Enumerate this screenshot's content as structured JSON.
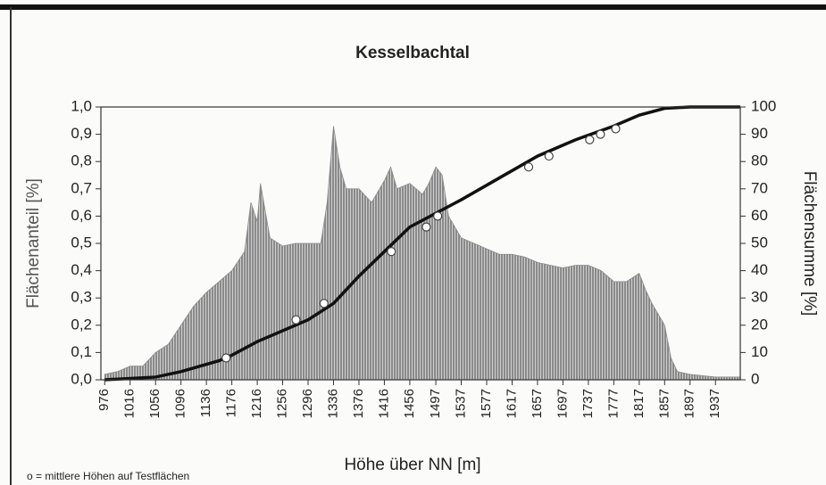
{
  "chart_data": {
    "type": "combo",
    "title": "Kesselbachtal",
    "x_label": "Höhe über NN [m]",
    "y_label": "Flächenanteil [%]",
    "y2_label": "Flächensumme [%]",
    "note": "o = mittlere Höhen auf Testflächen",
    "xlim": [
      970,
      1976
    ],
    "xticks": [
      976,
      1016,
      1056,
      1096,
      1136,
      1176,
      1216,
      1256,
      1296,
      1336,
      1376,
      1416,
      1456,
      1497,
      1537,
      1577,
      1617,
      1657,
      1697,
      1737,
      1777,
      1817,
      1857,
      1897,
      1937
    ],
    "ylim": [
      0,
      1
    ],
    "yticks": [
      {
        "value": 0,
        "label": "0,0"
      },
      {
        "value": 0.1,
        "label": "0,1"
      },
      {
        "value": 0.2,
        "label": "0,2"
      },
      {
        "value": 0.3,
        "label": "0,3"
      },
      {
        "value": 0.4,
        "label": "0,4"
      },
      {
        "value": 0.5,
        "label": "0,5"
      },
      {
        "value": 0.6,
        "label": "0,6"
      },
      {
        "value": 0.7,
        "label": "0,7"
      },
      {
        "value": 0.8,
        "label": "0,8"
      },
      {
        "value": 0.9,
        "label": "0,9"
      },
      {
        "value": 1,
        "label": "1,0"
      }
    ],
    "y2lim": [
      0,
      100
    ],
    "y2ticks": [
      0,
      10,
      20,
      30,
      40,
      50,
      60,
      70,
      80,
      90,
      100
    ],
    "series": [
      {
        "type": "area",
        "color": "#8a8a8a",
        "x": [
          976,
          996,
          1016,
          1036,
          1056,
          1076,
          1096,
          1116,
          1136,
          1156,
          1176,
          1196,
          1206,
          1216,
          1221,
          1236,
          1256,
          1276,
          1296,
          1316,
          1326,
          1336,
          1346,
          1356,
          1376,
          1396,
          1416,
          1426,
          1436,
          1456,
          1476,
          1486,
          1497,
          1507,
          1517,
          1537,
          1557,
          1577,
          1597,
          1617,
          1637,
          1657,
          1677,
          1697,
          1717,
          1737,
          1757,
          1777,
          1797,
          1817,
          1827,
          1837,
          1857,
          1867,
          1877,
          1897,
          1937,
          1976
        ],
        "values": [
          0.02,
          0.03,
          0.05,
          0.05,
          0.1,
          0.13,
          0.2,
          0.27,
          0.32,
          0.36,
          0.4,
          0.47,
          0.65,
          0.58,
          0.72,
          0.52,
          0.49,
          0.5,
          0.5,
          0.5,
          0.65,
          0.93,
          0.78,
          0.7,
          0.7,
          0.65,
          0.73,
          0.78,
          0.7,
          0.72,
          0.68,
          0.72,
          0.78,
          0.75,
          0.6,
          0.52,
          0.5,
          0.48,
          0.46,
          0.46,
          0.45,
          0.43,
          0.42,
          0.41,
          0.42,
          0.42,
          0.4,
          0.36,
          0.36,
          0.39,
          0.33,
          0.28,
          0.2,
          0.08,
          0.03,
          0.02,
          0.01,
          0.01
        ]
      },
      {
        "type": "line",
        "axis": "y2",
        "color": "#111111",
        "x": [
          976,
          1056,
          1096,
          1156,
          1176,
          1216,
          1296,
          1336,
          1376,
          1416,
          1456,
          1537,
          1597,
          1657,
          1717,
          1777,
          1817,
          1857,
          1897,
          1976
        ],
        "values": [
          0,
          1,
          3,
          7,
          9,
          14,
          22,
          28,
          38,
          47,
          56,
          66,
          74,
          82,
          88,
          93,
          97,
          99.5,
          100,
          100
        ]
      },
      {
        "type": "scatter",
        "axis": "y2",
        "color": "#ffffff",
        "x": [
          1167,
          1277,
          1321,
          1427,
          1482,
          1500,
          1643,
          1675,
          1739,
          1756,
          1780
        ],
        "values": [
          8,
          22,
          28,
          47,
          56,
          60,
          78,
          82,
          88,
          90,
          92
        ]
      }
    ]
  }
}
